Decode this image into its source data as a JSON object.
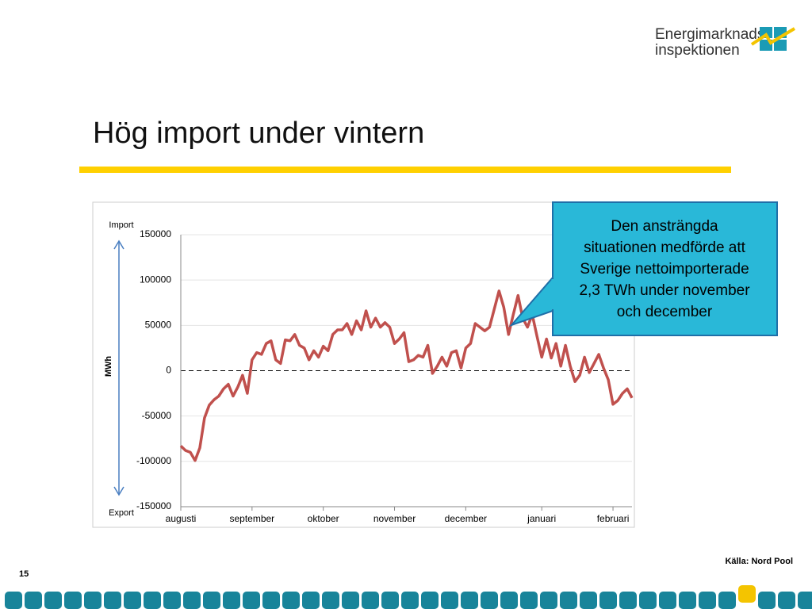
{
  "header": {
    "logo_line1": "Energimarknads",
    "logo_line2": "inspektionen",
    "title": "Hög import under vintern"
  },
  "chart_data": {
    "type": "line",
    "ylabel": "MWh",
    "annotation_top": "Import",
    "annotation_bottom": "Export",
    "xlim": [
      0,
      95
    ],
    "xticks": [
      {
        "value": 0,
        "label": "augusti"
      },
      {
        "value": 15,
        "label": "september"
      },
      {
        "value": 30,
        "label": "oktober"
      },
      {
        "value": 45,
        "label": "november"
      },
      {
        "value": 60,
        "label": "december"
      },
      {
        "value": 76,
        "label": "januari"
      },
      {
        "value": 91,
        "label": "februari"
      }
    ],
    "ylim": [
      -150000,
      150000
    ],
    "yticks": [
      -150000,
      -100000,
      -50000,
      0,
      50000,
      100000,
      150000
    ],
    "grid": true,
    "series": [
      {
        "color": "#c0504d",
        "values": [
          -83000,
          -88000,
          -90000,
          -99000,
          -85000,
          -52000,
          -38000,
          -32000,
          -28000,
          -20000,
          -15000,
          -28000,
          -18000,
          -5000,
          -25000,
          12000,
          20000,
          18000,
          30000,
          33000,
          12000,
          8000,
          34000,
          33000,
          40000,
          28000,
          25000,
          12000,
          22000,
          15000,
          27000,
          22000,
          40000,
          45000,
          45000,
          52000,
          40000,
          55000,
          45000,
          66000,
          48000,
          58000,
          48000,
          53000,
          48000,
          30000,
          35000,
          42000,
          10000,
          12000,
          17000,
          15000,
          28000,
          -3000,
          5000,
          15000,
          5000,
          20000,
          22000,
          3000,
          25000,
          30000,
          52000,
          48000,
          44000,
          48000,
          68000,
          88000,
          70000,
          40000,
          62000,
          83000,
          58000,
          48000,
          62000,
          38000,
          15000,
          35000,
          14000,
          30000,
          5000,
          28000,
          5000,
          -12000,
          -5000,
          15000,
          -2000,
          8000,
          18000,
          3000,
          -10000,
          -37000,
          -33000,
          -25000,
          -20000,
          -30000
        ]
      }
    ]
  },
  "callout": {
    "lines": [
      "Den ansträngda",
      "situationen medförde  att",
      "Sverige nettoimporterade",
      "2,3 TWh under november",
      "och december"
    ]
  },
  "footer": {
    "source": "Källa: Nord Pool",
    "page": "15"
  }
}
